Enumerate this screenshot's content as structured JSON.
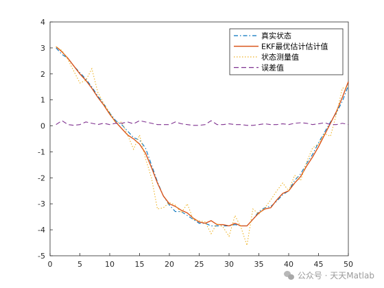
{
  "chart_data": {
    "type": "line",
    "xlim": [
      0,
      50
    ],
    "ylim": [
      -5,
      4
    ],
    "xticks": [
      0,
      5,
      10,
      15,
      20,
      25,
      30,
      35,
      40,
      45,
      50
    ],
    "yticks": [
      -5,
      -4,
      -3,
      -2,
      -1,
      0,
      1,
      2,
      3,
      4
    ],
    "grid": false,
    "legend_position": "top-right",
    "x": [
      1,
      2,
      3,
      4,
      5,
      6,
      7,
      8,
      9,
      10,
      11,
      12,
      13,
      14,
      15,
      16,
      17,
      18,
      19,
      20,
      21,
      22,
      23,
      24,
      25,
      26,
      27,
      28,
      29,
      30,
      31,
      32,
      33,
      34,
      35,
      36,
      37,
      38,
      39,
      40,
      41,
      42,
      43,
      44,
      45,
      46,
      47,
      48,
      49,
      50
    ],
    "series": [
      {
        "name": "真实状态",
        "color": "#0072BD",
        "style": "dashdot",
        "values": [
          3.0,
          2.75,
          2.6,
          2.3,
          2.05,
          1.8,
          1.5,
          1.15,
          0.85,
          0.5,
          0.2,
          0.05,
          -0.2,
          -0.45,
          -0.55,
          -0.85,
          -1.5,
          -2.15,
          -2.7,
          -3.05,
          -3.3,
          -3.3,
          -3.45,
          -3.6,
          -3.75,
          -3.75,
          -3.85,
          -3.85,
          -3.85,
          -3.85,
          -3.8,
          -3.85,
          -3.85,
          -3.6,
          -3.3,
          -3.15,
          -3.1,
          -2.9,
          -2.65,
          -2.5,
          -2.1,
          -1.85,
          -1.45,
          -1.1,
          -0.65,
          -0.25,
          0.15,
          0.5,
          0.95,
          1.55
        ]
      },
      {
        "name": "EKF最优估计估计值",
        "color": "#D95319",
        "style": "solid",
        "values": [
          3.05,
          2.85,
          2.6,
          2.3,
          2.0,
          1.75,
          1.45,
          1.1,
          0.8,
          0.45,
          0.15,
          -0.1,
          -0.35,
          -0.5,
          -0.7,
          -1.05,
          -1.6,
          -2.2,
          -2.7,
          -3.0,
          -3.1,
          -3.25,
          -3.35,
          -3.55,
          -3.7,
          -3.75,
          -3.65,
          -3.8,
          -3.8,
          -3.85,
          -3.75,
          -3.85,
          -3.85,
          -3.6,
          -3.35,
          -3.2,
          -3.15,
          -2.85,
          -2.6,
          -2.5,
          -2.2,
          -1.95,
          -1.55,
          -1.2,
          -0.8,
          -0.35,
          0.1,
          0.55,
          1.1,
          1.7
        ]
      },
      {
        "name": "状态测量值",
        "color": "#EDB120",
        "style": "dotted",
        "values": [
          3.05,
          2.9,
          2.55,
          2.1,
          1.65,
          1.75,
          2.2,
          1.3,
          0.85,
          0.5,
          0.1,
          0.15,
          -0.35,
          -0.9,
          -0.35,
          -1.25,
          -2.0,
          -3.2,
          -3.15,
          -2.95,
          -3.05,
          -3.35,
          -3.0,
          -3.6,
          -3.65,
          -3.7,
          -4.15,
          -3.75,
          -3.9,
          -4.25,
          -3.45,
          -3.9,
          -4.6,
          -3.2,
          -3.4,
          -3.15,
          -2.85,
          -2.5,
          -2.2,
          -2.5,
          -1.9,
          -2.1,
          -1.4,
          -0.85,
          -0.7,
          -0.3,
          -0.4,
          0.45,
          1.45,
          1.5
        ]
      },
      {
        "name": "误差值",
        "color": "#7E2F8E",
        "style": "dashed",
        "values": [
          0.05,
          0.2,
          0.05,
          0.02,
          0.05,
          0.15,
          0.1,
          0.05,
          0.1,
          0.05,
          0.1,
          0.1,
          0.15,
          0.08,
          0.2,
          0.15,
          0.1,
          0.05,
          0.05,
          0.05,
          0.15,
          0.08,
          0.05,
          0.02,
          0.02,
          0.05,
          0.2,
          0.05,
          0.05,
          0.08,
          0.05,
          0.05,
          0.02,
          0.02,
          0.05,
          0.08,
          0.05,
          0.05,
          0.08,
          0.05,
          0.1,
          0.12,
          0.1,
          0.05,
          0.08,
          0.12,
          0.05,
          0.05,
          0.1,
          0.05
        ]
      }
    ]
  },
  "watermark": "公众号 · 天天Matlab"
}
